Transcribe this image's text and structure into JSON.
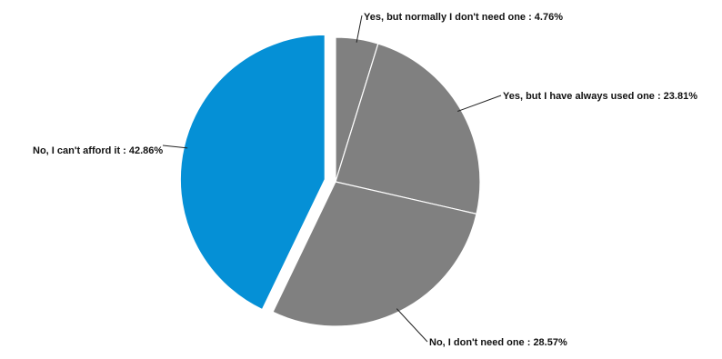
{
  "chart_data": {
    "type": "pie",
    "title": "",
    "legend": "none",
    "slices": [
      {
        "label": "Yes, but normally I don't need one",
        "value": 4.76,
        "display": "Yes, but normally I don't need one : 4.76%",
        "color": "#808080",
        "exploded": false
      },
      {
        "label": "Yes, but I have always used one",
        "value": 23.81,
        "display": "Yes, but I have always used one : 23.81%",
        "color": "#808080",
        "exploded": false
      },
      {
        "label": "No, I don't need one",
        "value": 28.57,
        "display": "No, I don't need one : 28.57%",
        "color": "#808080",
        "exploded": false
      },
      {
        "label": "No, I can't afford it",
        "value": 42.86,
        "display": "No, I can't afford it : 42.86%",
        "color": "#0590d6",
        "exploded": true
      }
    ]
  }
}
